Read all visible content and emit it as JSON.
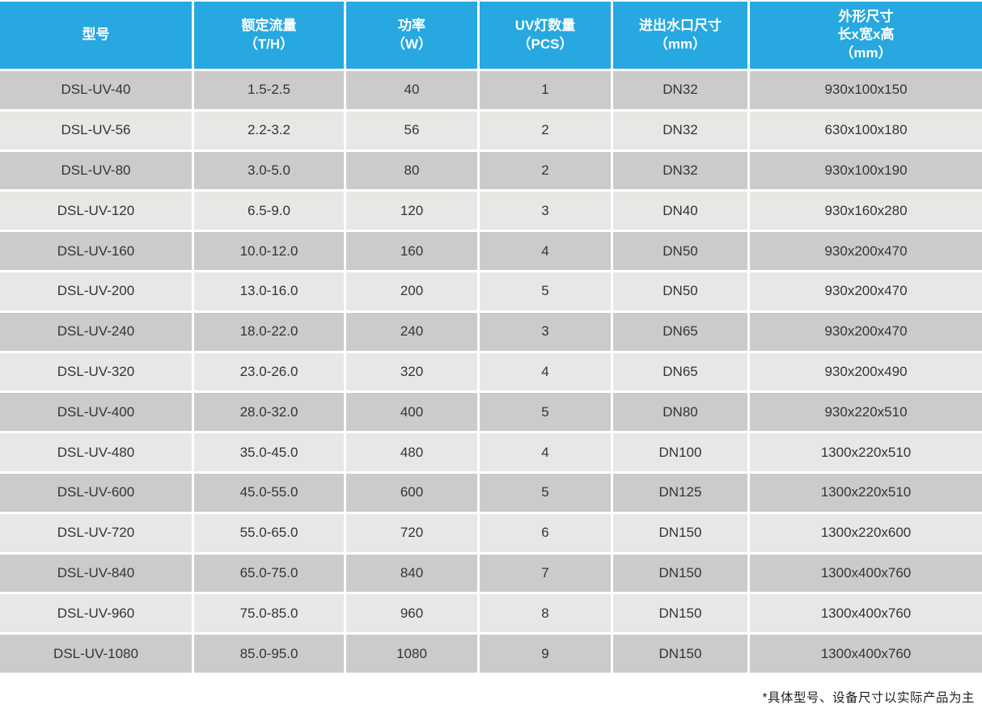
{
  "table": {
    "columns": [
      {
        "id": "model",
        "label": "型号",
        "unit": ""
      },
      {
        "id": "flow",
        "label": "额定流量",
        "unit": "（T/H）"
      },
      {
        "id": "power",
        "label": "功率",
        "unit": "（W）"
      },
      {
        "id": "lamps",
        "label": "UV灯数量",
        "unit": "（PCS）"
      },
      {
        "id": "port",
        "label": "进出水口尺寸",
        "unit": "（mm）"
      },
      {
        "id": "dimensions",
        "label": "外形尺寸",
        "label2": "长x宽x高",
        "unit": "（mm）"
      }
    ],
    "rows": [
      [
        "DSL-UV-40",
        "1.5-2.5",
        "40",
        "1",
        "DN32",
        "930x100x150"
      ],
      [
        "DSL-UV-56",
        "2.2-3.2",
        "56",
        "2",
        "DN32",
        "630x100x180"
      ],
      [
        "DSL-UV-80",
        "3.0-5.0",
        "80",
        "2",
        "DN32",
        "930x100x190"
      ],
      [
        "DSL-UV-120",
        "6.5-9.0",
        "120",
        "3",
        "DN40",
        "930x160x280"
      ],
      [
        "DSL-UV-160",
        "10.0-12.0",
        "160",
        "4",
        "DN50",
        "930x200x470"
      ],
      [
        "DSL-UV-200",
        "13.0-16.0",
        "200",
        "5",
        "DN50",
        "930x200x470"
      ],
      [
        "DSL-UV-240",
        "18.0-22.0",
        "240",
        "3",
        "DN65",
        "930x200x470"
      ],
      [
        "DSL-UV-320",
        "23.0-26.0",
        "320",
        "4",
        "DN65",
        "930x200x490"
      ],
      [
        "DSL-UV-400",
        "28.0-32.0",
        "400",
        "5",
        "DN80",
        "930x220x510"
      ],
      [
        "DSL-UV-480",
        "35.0-45.0",
        "480",
        "4",
        "DN100",
        "1300x220x510"
      ],
      [
        "DSL-UV-600",
        "45.0-55.0",
        "600",
        "5",
        "DN125",
        "1300x220x510"
      ],
      [
        "DSL-UV-720",
        "55.0-65.0",
        "720",
        "6",
        "DN150",
        "1300x220x600"
      ],
      [
        "DSL-UV-840",
        "65.0-75.0",
        "840",
        "7",
        "DN150",
        "1300x400x760"
      ],
      [
        "DSL-UV-960",
        "75.0-85.0",
        "960",
        "8",
        "DN150",
        "1300x400x760"
      ],
      [
        "DSL-UV-1080",
        "85.0-95.0",
        "1080",
        "9",
        "DN150",
        "1300x400x760"
      ]
    ],
    "footnote": "*具体型号、设备尺寸以实际产品为主"
  },
  "colors": {
    "header_bg": "#27a8e0",
    "header_text": "#ffffff",
    "row_dark": "#cccbca",
    "row_light": "#e8e7e5",
    "body_text": "#343434",
    "background": "#ffffff",
    "footnote_text": "#1f1f1f"
  }
}
